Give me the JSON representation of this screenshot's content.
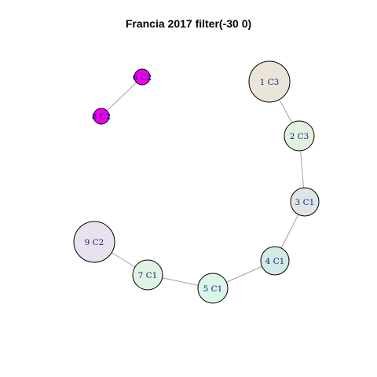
{
  "title": "Francia 2017 filter(-30 0)",
  "nodes": [
    {
      "id": "n1",
      "label": "1 C3",
      "color": "#ebe5d9"
    },
    {
      "id": "n2",
      "label": "2 C3",
      "color": "#e1f0df"
    },
    {
      "id": "n3",
      "label": "3 C1",
      "color": "#dde5e6"
    },
    {
      "id": "n4",
      "label": "4 C1",
      "color": "#d3ebe6"
    },
    {
      "id": "n5",
      "label": "5 C1",
      "color": "#daf5ea"
    },
    {
      "id": "n6",
      "label": "6 C2",
      "color": "#ee00ee"
    },
    {
      "id": "n7",
      "label": "7 C1",
      "color": "#dff4e3"
    },
    {
      "id": "n8",
      "label": "8 C2",
      "color": "#ee00ee"
    },
    {
      "id": "n9",
      "label": "9 C2",
      "color": "#e8e2ef"
    }
  ],
  "edges": [
    [
      "n6",
      "n8"
    ],
    [
      "n1",
      "n2"
    ],
    [
      "n2",
      "n3"
    ],
    [
      "n3",
      "n4"
    ],
    [
      "n4",
      "n5"
    ],
    [
      "n5",
      "n7"
    ],
    [
      "n7",
      "n9"
    ]
  ]
}
